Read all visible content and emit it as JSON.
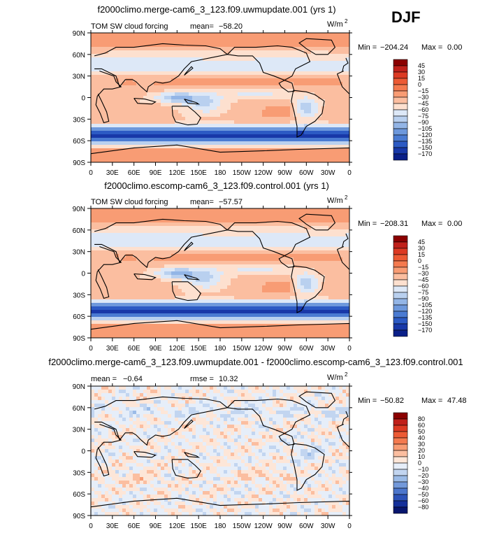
{
  "season": "DJF",
  "chart_data": [
    {
      "type": "heatmap",
      "title": "f2000climo.merge-cam6_3_123.f09.uwmupdate.001 (yrs 1)",
      "left_label": "TOM SW cloud forcing",
      "mean_label": "mean=",
      "mean_value": "−58.20",
      "units_base": "W/m",
      "units_exp": "2",
      "min_label": "Min =",
      "min_value": "−204.24",
      "max_label": "Max =",
      "max_value": "0.00",
      "x_ticks": [
        "0",
        "30E",
        "60E",
        "90E",
        "120E",
        "150E",
        "180",
        "150W",
        "120W",
        "90W",
        "60W",
        "30W",
        "0"
      ],
      "y_ticks": [
        "90N",
        "60N",
        "30N",
        "0",
        "30S",
        "60S",
        "90S"
      ],
      "colorbar_levels": [
        "45",
        "30",
        "15",
        "0",
        "−15",
        "−30",
        "−45",
        "−60",
        "−75",
        "−90",
        "−105",
        "−120",
        "−135",
        "−150",
        "−170"
      ],
      "colorbar_colors": [
        "#8b0000",
        "#c0201a",
        "#dc3a23",
        "#ec5a34",
        "#f47a4f",
        "#f89c74",
        "#fbbea0",
        "#fde0cf",
        "#dde8f7",
        "#b9d0ef",
        "#93b5e6",
        "#6d98dc",
        "#4a7bd2",
        "#2c5ac4",
        "#1838a8",
        "#0a1f88"
      ],
      "colorbar_vmin": -180,
      "colorbar_vmax": 60,
      "field": "control"
    },
    {
      "type": "heatmap",
      "title": "f2000climo.escomp-cam6_3_123.f09.control.001 (yrs 1)",
      "left_label": "TOM SW cloud forcing",
      "mean_label": "mean=",
      "mean_value": "−57.57",
      "units_base": "W/m",
      "units_exp": "2",
      "min_label": "Min =",
      "min_value": "−208.31",
      "max_label": "Max =",
      "max_value": "0.00",
      "x_ticks": [
        "0",
        "30E",
        "60E",
        "90E",
        "120E",
        "150E",
        "180",
        "150W",
        "120W",
        "90W",
        "60W",
        "30W",
        "0"
      ],
      "y_ticks": [
        "90N",
        "60N",
        "30N",
        "0",
        "30S",
        "60S",
        "90S"
      ],
      "colorbar_levels": [
        "45",
        "30",
        "15",
        "0",
        "−15",
        "−30",
        "−45",
        "−60",
        "−75",
        "−90",
        "−105",
        "−120",
        "−135",
        "−150",
        "−170"
      ],
      "colorbar_colors": [
        "#8b0000",
        "#c0201a",
        "#dc3a23",
        "#ec5a34",
        "#f47a4f",
        "#f89c74",
        "#fbbea0",
        "#fde0cf",
        "#dde8f7",
        "#b9d0ef",
        "#93b5e6",
        "#6d98dc",
        "#4a7bd2",
        "#2c5ac4",
        "#1838a8",
        "#0a1f88"
      ],
      "colorbar_vmin": -180,
      "colorbar_vmax": 60,
      "field": "control"
    },
    {
      "type": "heatmap",
      "title": "f2000climo.merge-cam6_3_123.f09.uwmupdate.001 - f2000climo.escomp-cam6_3_123.f09.control.001",
      "left_label": "mean =",
      "left_value": "−0.64",
      "mean_label": "rmse =",
      "mean_value": "10.32",
      "units_base": "W/m",
      "units_exp": "2",
      "min_label": "Min =",
      "min_value": "−50.82",
      "max_label": "Max =",
      "max_value": "47.48",
      "x_ticks": [
        "0",
        "30E",
        "60E",
        "90E",
        "120E",
        "150E",
        "180",
        "150W",
        "120W",
        "90W",
        "60W",
        "30W",
        "0"
      ],
      "y_ticks": [
        "90N",
        "60N",
        "30N",
        "0",
        "30S",
        "60S",
        "90S"
      ],
      "colorbar_levels": [
        "80",
        "60",
        "50",
        "40",
        "30",
        "20",
        "10",
        "0",
        "−10",
        "−20",
        "−30",
        "−40",
        "−50",
        "−60",
        "−80"
      ],
      "colorbar_colors": [
        "#8b0000",
        "#c0201a",
        "#dc3a23",
        "#ec5a34",
        "#f47a4f",
        "#f89c74",
        "#fbbea0",
        "#fde6d8",
        "#e6eef9",
        "#c2d5f0",
        "#9bbbe7",
        "#7399da",
        "#4c76cc",
        "#2c52b8",
        "#15309a",
        "#08166e"
      ],
      "colorbar_vmin": -90,
      "colorbar_vmax": 90,
      "field": "diff"
    }
  ]
}
